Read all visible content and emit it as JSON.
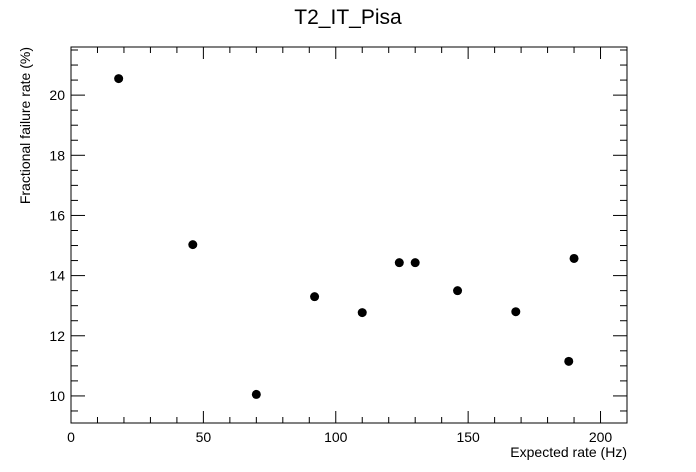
{
  "chart_data": {
    "type": "scatter",
    "title": "T2_IT_Pisa",
    "xlabel": "Expected rate (Hz)",
    "ylabel": "Fractional failure rate (%)",
    "xlim": [
      0,
      210
    ],
    "ylim": [
      9.1,
      21.6
    ],
    "xticks": [
      0,
      50,
      100,
      150,
      200
    ],
    "yticks": [
      10,
      12,
      14,
      16,
      18,
      20
    ],
    "grid": false,
    "marker_color": "#000000",
    "points": [
      {
        "x": 18,
        "y": 20.55
      },
      {
        "x": 46,
        "y": 15.03
      },
      {
        "x": 70,
        "y": 10.05
      },
      {
        "x": 92,
        "y": 13.3
      },
      {
        "x": 110,
        "y": 12.77
      },
      {
        "x": 124,
        "y": 14.43
      },
      {
        "x": 130,
        "y": 14.43
      },
      {
        "x": 146,
        "y": 13.5
      },
      {
        "x": 168,
        "y": 12.8
      },
      {
        "x": 188,
        "y": 11.15
      },
      {
        "x": 190,
        "y": 14.57
      }
    ]
  }
}
